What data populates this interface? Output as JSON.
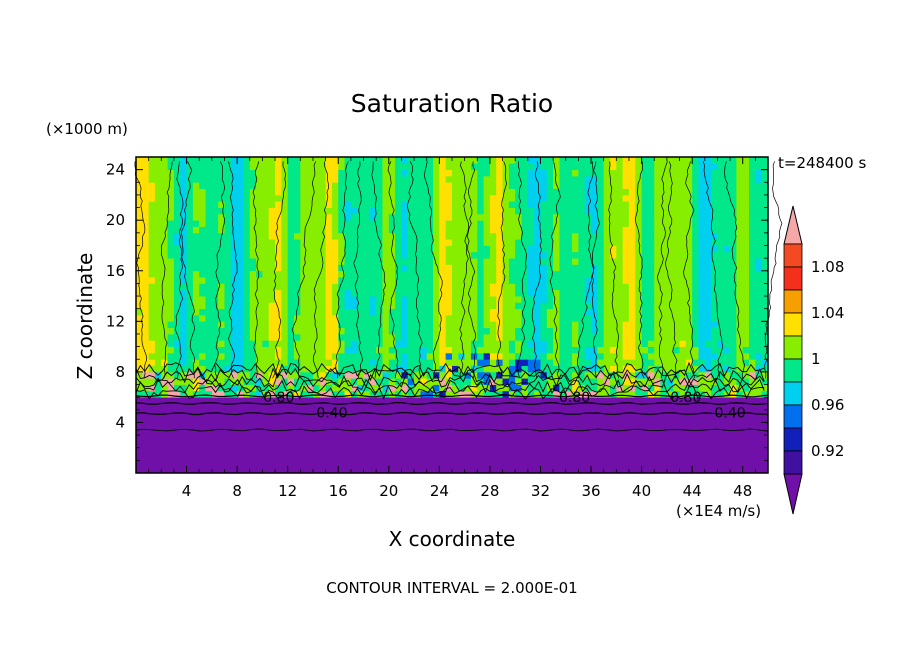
{
  "chart_data": {
    "type": "heatmap",
    "title": "Saturation Ratio",
    "xlabel": "X coordinate",
    "ylabel": "Z coordinate",
    "x_unit": "(×1E4 m/s)",
    "y_unit": "(×1000 m)",
    "time_label": "t=248400 s",
    "footer": "CONTOUR INTERVAL = 2.000E-01",
    "xlim": [
      0,
      50
    ],
    "ylim": [
      0,
      25
    ],
    "x_ticks": [
      "4",
      "8",
      "12",
      "16",
      "20",
      "24",
      "28",
      "32",
      "36",
      "40",
      "44",
      "48"
    ],
    "y_ticks": [
      "4",
      "8",
      "12",
      "16",
      "20",
      "24"
    ],
    "colorbar_labels": [
      "1.08",
      "1.04",
      "1",
      "0.96",
      "0.92"
    ],
    "contour_labels": [
      "0.80",
      "0.40",
      "0.80",
      "0.80",
      "0.40"
    ],
    "colorbar": [
      {
        "min": 1.1,
        "color": "#f4a8a8"
      },
      {
        "min": 1.08,
        "max": 1.1,
        "color": "#f44a24"
      },
      {
        "min": 1.06,
        "max": 1.08,
        "color": "#f42f1c"
      },
      {
        "min": 1.04,
        "max": 1.06,
        "color": "#f6a000"
      },
      {
        "min": 1.02,
        "max": 1.04,
        "color": "#ffe000"
      },
      {
        "min": 1.0,
        "max": 1.02,
        "color": "#88ee00"
      },
      {
        "min": 0.98,
        "max": 1.0,
        "color": "#00e88a"
      },
      {
        "min": 0.96,
        "max": 0.98,
        "color": "#00d0f0"
      },
      {
        "min": 0.94,
        "max": 0.96,
        "color": "#0070ee"
      },
      {
        "min": 0.92,
        "max": 0.94,
        "color": "#1020b8"
      },
      {
        "min": 0.9,
        "max": 0.92,
        "color": "#4010a0"
      },
      {
        "max": 0.9,
        "color": "#7010a8"
      }
    ]
  }
}
